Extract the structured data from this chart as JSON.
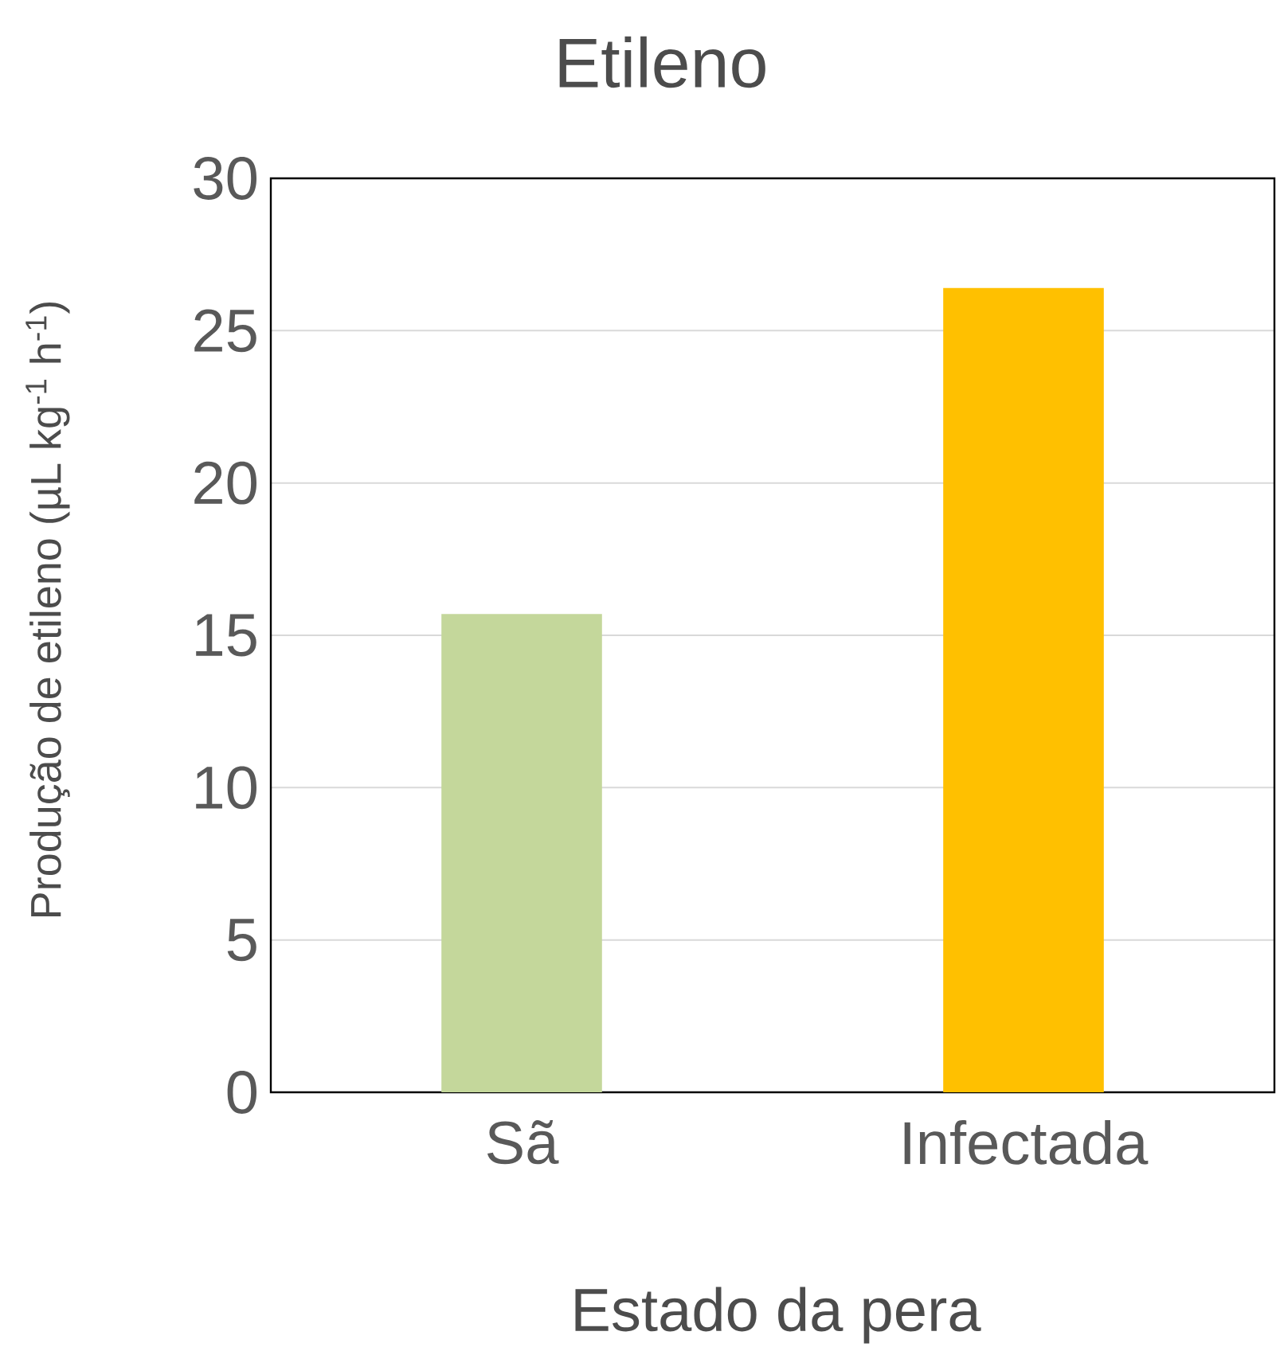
{
  "chart_data": {
    "type": "bar",
    "title": "Etileno",
    "xlabel": "Estado da pera",
    "ylabel": "Produção de etileno (µL kg$^{-1}$ h$^{-1}$)",
    "categories": [
      "Sã",
      "Infectada"
    ],
    "values": [
      15.7,
      26.4
    ],
    "colors": [
      "#c4d79b",
      "#ffc000"
    ],
    "ylim": [
      0,
      30
    ],
    "yticks": [
      0,
      5,
      10,
      15,
      20,
      25,
      30
    ],
    "grid": "y"
  }
}
